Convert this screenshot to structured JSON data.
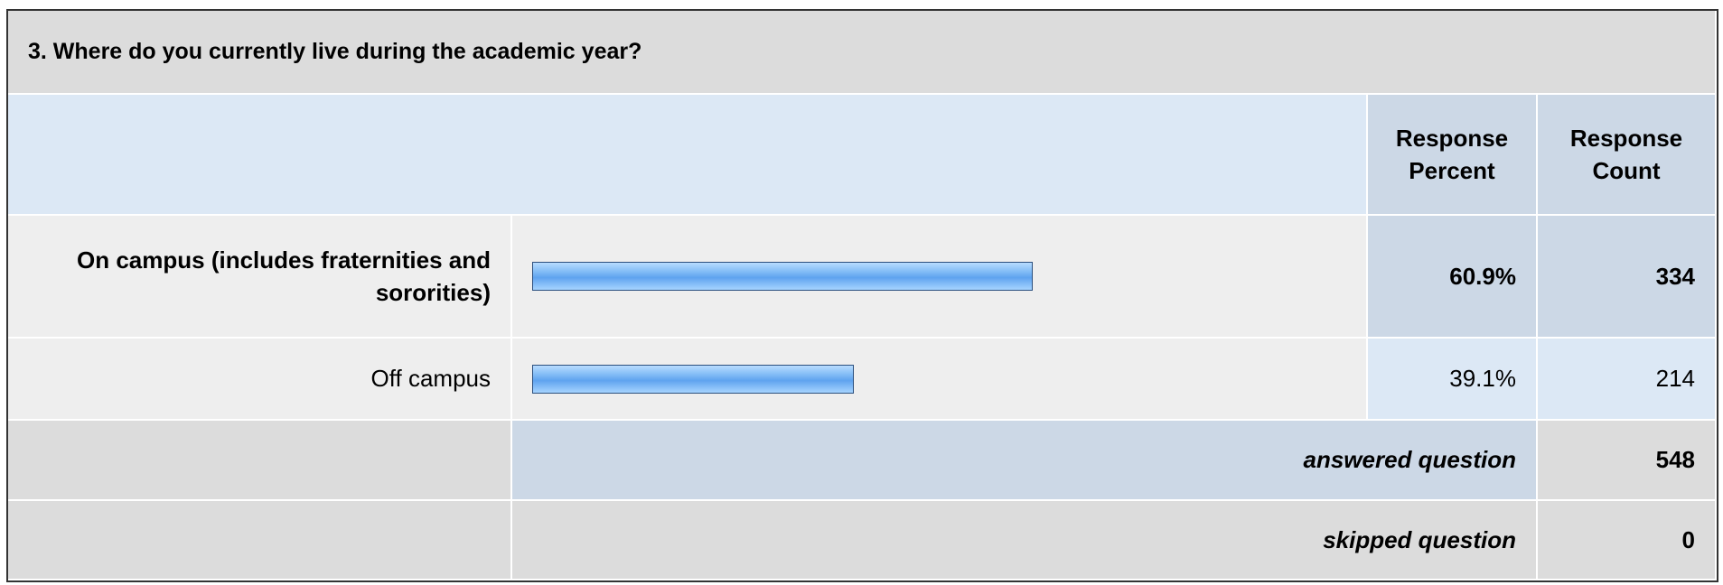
{
  "survey": {
    "title": "3. Where do you currently live during the academic year?",
    "columns": [
      "Response Percent",
      "Response Count"
    ],
    "rows": [
      {
        "label": "On campus (includes fraternities and sororities)",
        "percent": 60.9,
        "percent_label": "60.9%",
        "count": 334
      },
      {
        "label": "Off campus",
        "percent": 39.1,
        "percent_label": "39.1%",
        "count": 214
      }
    ],
    "answered": {
      "label": "answered question",
      "count": 548
    },
    "skipped": {
      "label": "skipped question",
      "count": 0
    }
  }
}
